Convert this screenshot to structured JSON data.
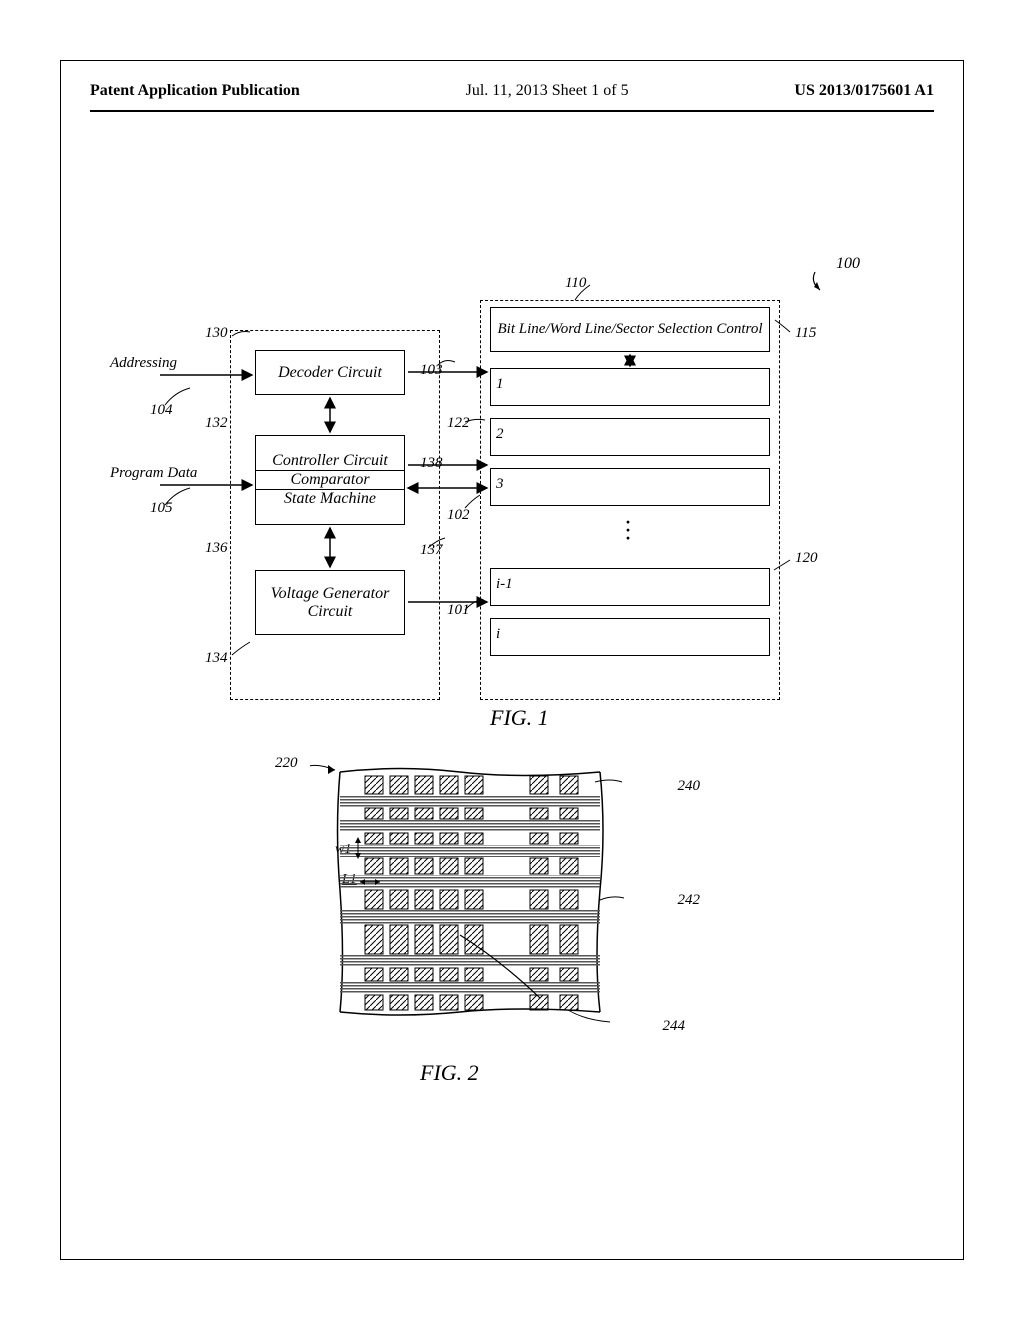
{
  "header": {
    "left": "Patent Application Publication",
    "center": "Jul. 11, 2013  Sheet 1 of 5",
    "right": "US 2013/0175601 A1"
  },
  "fig1": {
    "caption": "FIG. 1",
    "ref100": "100",
    "addressing_label": "Addressing",
    "program_label": "Program Data",
    "decoder": "Decoder Circuit",
    "controller_l1": "Controller Circuit",
    "controller_l2": "Comparator",
    "controller_l3": "State Machine",
    "voltage": "Voltage Generator Circuit",
    "selection": "Bit Line/Word Line/Sector Selection Control",
    "sectors": {
      "s1": "1",
      "s2": "2",
      "s3": "3",
      "si1": "i-1",
      "si": "i"
    },
    "refs": {
      "r130": "130",
      "r104": "104",
      "r132": "132",
      "r105": "105",
      "r136": "136",
      "r134": "134",
      "r103": "103",
      "r122": "122",
      "r138": "138",
      "r102": "102",
      "r137": "137",
      "r101": "101",
      "r110": "110",
      "r115": "115",
      "r120": "120"
    }
  },
  "fig2": {
    "caption": "FIG. 2",
    "refs": {
      "r220": "220",
      "r240": "240",
      "r242": "242",
      "r244": "244"
    },
    "w1": "w1",
    "L1": "L1",
    "style": {
      "hatch_color": "#000000",
      "hstripe_color": "#6b6b6b",
      "row_count": 8,
      "col_count": 8
    }
  }
}
